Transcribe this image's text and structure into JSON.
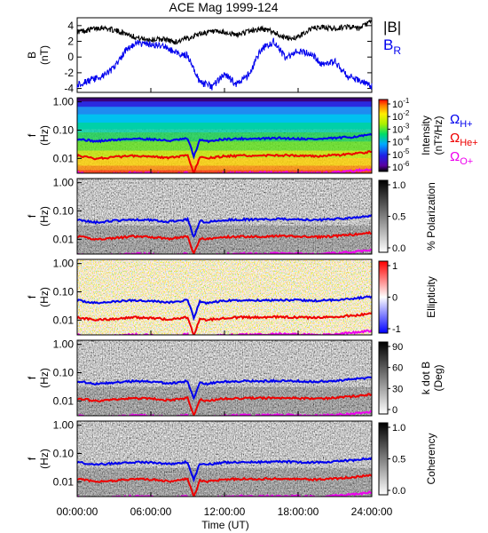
{
  "title": "ACE Mag 1999-124",
  "x_axis": {
    "label": "Time (UT)",
    "ticks": [
      "00:00:00",
      "06:00:00",
      "12:00:00",
      "18:00:00",
      "24:00:00"
    ],
    "tick_hours": [
      0,
      6,
      12,
      18,
      24
    ]
  },
  "line_panel": {
    "ylabel_line1": "B",
    "ylabel_line2": "(nT)",
    "yticks": [
      "4",
      "2",
      "0",
      "-2",
      "-4"
    ],
    "ytick_values": [
      4,
      2,
      0,
      -2,
      -4
    ],
    "legend": [
      {
        "label": "|B|",
        "color": "#000000"
      },
      {
        "label": "B",
        "sub": "R",
        "color": "#0000ee"
      }
    ]
  },
  "freq_axis": {
    "ylabel_line1": "f",
    "ylabel_line2": "(Hz)",
    "ticks": [
      "1.00",
      "0.10",
      "0.01"
    ],
    "tick_values": [
      1.0,
      0.1,
      0.01
    ]
  },
  "gyro_legend": [
    {
      "label": "Ω",
      "sub": "H+",
      "color": "#0000ee"
    },
    {
      "label": "Ω",
      "sub": "He+",
      "color": "#ee0000"
    },
    {
      "label": "Ω",
      "sub": "O+",
      "color": "#ee00ee"
    }
  ],
  "panels": [
    {
      "name": "intensity",
      "colorbar": "rainbow",
      "label_line1": "Intensity",
      "label_line2": "(nT²/Hz)",
      "ticks": [
        {
          "base": "10",
          "exp": "-1"
        },
        {
          "base": "10",
          "exp": "-2"
        },
        {
          "base": "10",
          "exp": "-3"
        },
        {
          "base": "10",
          "exp": "-4"
        },
        {
          "base": "10",
          "exp": "-5"
        },
        {
          "base": "10",
          "exp": "-6"
        }
      ]
    },
    {
      "name": "polarization",
      "colorbar": "gray",
      "label_line1": "% Polarization",
      "label_line2": "",
      "ticks": [
        {
          "base": "1.0"
        },
        {
          "base": "0.5"
        },
        {
          "base": "0.0"
        }
      ]
    },
    {
      "name": "ellipticity",
      "colorbar": "redblue",
      "label_line1": "Ellipticity",
      "label_line2": "",
      "ticks": [
        {
          "base": "1"
        },
        {
          "base": "0"
        },
        {
          "base": "-1"
        }
      ]
    },
    {
      "name": "kdotb",
      "colorbar": "gray",
      "label_line1": "k dot B",
      "label_line2": "(Deg)",
      "ticks": [
        {
          "base": "90"
        },
        {
          "base": "60"
        },
        {
          "base": "30"
        },
        {
          "base": "0"
        }
      ]
    },
    {
      "name": "coherency",
      "colorbar": "gray",
      "label_line1": "Coherency",
      "label_line2": "",
      "ticks": [
        {
          "base": "1.0"
        },
        {
          "base": "0.5"
        },
        {
          "base": "0.0"
        }
      ]
    }
  ],
  "colors": {
    "b_total": "#000000",
    "b_radial": "#0000ee",
    "omega_h": "#0000ee",
    "omega_he": "#ee0000",
    "omega_o": "#ee00ee"
  },
  "chart_data": [
    {
      "type": "line",
      "title": "ACE Mag 1999-124",
      "xlabel": "Time (UT)",
      "ylabel": "B (nT)",
      "xlim": [
        0,
        24
      ],
      "ylim": [
        -4.5,
        5
      ],
      "x": [
        0,
        1,
        2,
        3,
        4,
        5,
        6,
        7,
        8,
        9,
        10,
        11,
        12,
        13,
        14,
        15,
        16,
        17,
        18,
        19,
        20,
        21,
        22,
        23,
        24
      ],
      "series": [
        {
          "name": "|B|",
          "values": [
            3.2,
            3.5,
            3.8,
            3.4,
            3.0,
            2.4,
            2.2,
            2.3,
            1.9,
            2.4,
            3.0,
            3.2,
            3.1,
            2.8,
            3.3,
            3.6,
            3.2,
            2.4,
            2.5,
            3.6,
            3.8,
            3.6,
            3.9,
            3.6,
            4.6
          ]
        },
        {
          "name": "BR",
          "values": [
            -3.5,
            -3.0,
            -2.5,
            -1.4,
            1.0,
            1.8,
            1.5,
            1.4,
            0.6,
            0.2,
            -3.2,
            -3.8,
            -2.2,
            -3.5,
            -2.2,
            1.0,
            2.0,
            -0.2,
            0.8,
            0.5,
            -1.0,
            -0.6,
            -2.4,
            -3.0,
            -3.8
          ]
        }
      ]
    },
    {
      "type": "heatmap",
      "name": "Intensity",
      "xlabel": "Time (UT)",
      "ylabel": "f (Hz)",
      "xlim": [
        0,
        24
      ],
      "ylim": [
        0.003,
        1.4
      ],
      "yscale": "log",
      "colorbar_range": [
        1e-06,
        0.1
      ],
      "colorbar_scale": "log",
      "gyrofrequency_x": [
        0,
        1.5,
        3,
        4.5,
        6,
        7.5,
        9,
        9.5,
        10,
        10.5,
        12,
        13.5,
        15,
        16.5,
        18,
        19.5,
        21,
        22.5,
        24
      ],
      "gyrofrequency_series": [
        {
          "name": "ΩH+",
          "values": [
            0.05,
            0.04,
            0.045,
            0.05,
            0.048,
            0.042,
            0.05,
            0.012,
            0.045,
            0.04,
            0.048,
            0.05,
            0.05,
            0.052,
            0.05,
            0.048,
            0.052,
            0.058,
            0.068
          ]
        },
        {
          "name": "ΩHe+",
          "values": [
            0.0125,
            0.01,
            0.011,
            0.0125,
            0.012,
            0.0105,
            0.0125,
            0.003,
            0.011,
            0.01,
            0.012,
            0.0125,
            0.0125,
            0.013,
            0.0125,
            0.012,
            0.013,
            0.0145,
            0.017
          ]
        },
        {
          "name": "ΩO+",
          "values": [
            0.0031,
            0.0025,
            0.0028,
            0.0031,
            0.003,
            0.0026,
            0.0031,
            0.0008,
            0.0028,
            0.0025,
            0.003,
            0.0031,
            0.0031,
            0.0032,
            0.0031,
            0.003,
            0.0032,
            0.0036,
            0.0042
          ]
        }
      ]
    },
    {
      "type": "heatmap",
      "name": "% Polarization",
      "xlabel": "Time (UT)",
      "ylabel": "f (Hz)",
      "yscale": "log",
      "colorbar_range": [
        0.0,
        1.0
      ]
    },
    {
      "type": "heatmap",
      "name": "Ellipticity",
      "xlabel": "Time (UT)",
      "ylabel": "f (Hz)",
      "yscale": "log",
      "colorbar_range": [
        -1,
        1
      ]
    },
    {
      "type": "heatmap",
      "name": "k dot B",
      "xlabel": "Time (UT)",
      "ylabel": "f (Hz)",
      "yscale": "log",
      "colorbar_range": [
        0,
        90
      ]
    },
    {
      "type": "heatmap",
      "name": "Coherency",
      "xlabel": "Time (UT)",
      "ylabel": "f (Hz)",
      "yscale": "log",
      "colorbar_range": [
        0.0,
        1.0
      ]
    }
  ]
}
